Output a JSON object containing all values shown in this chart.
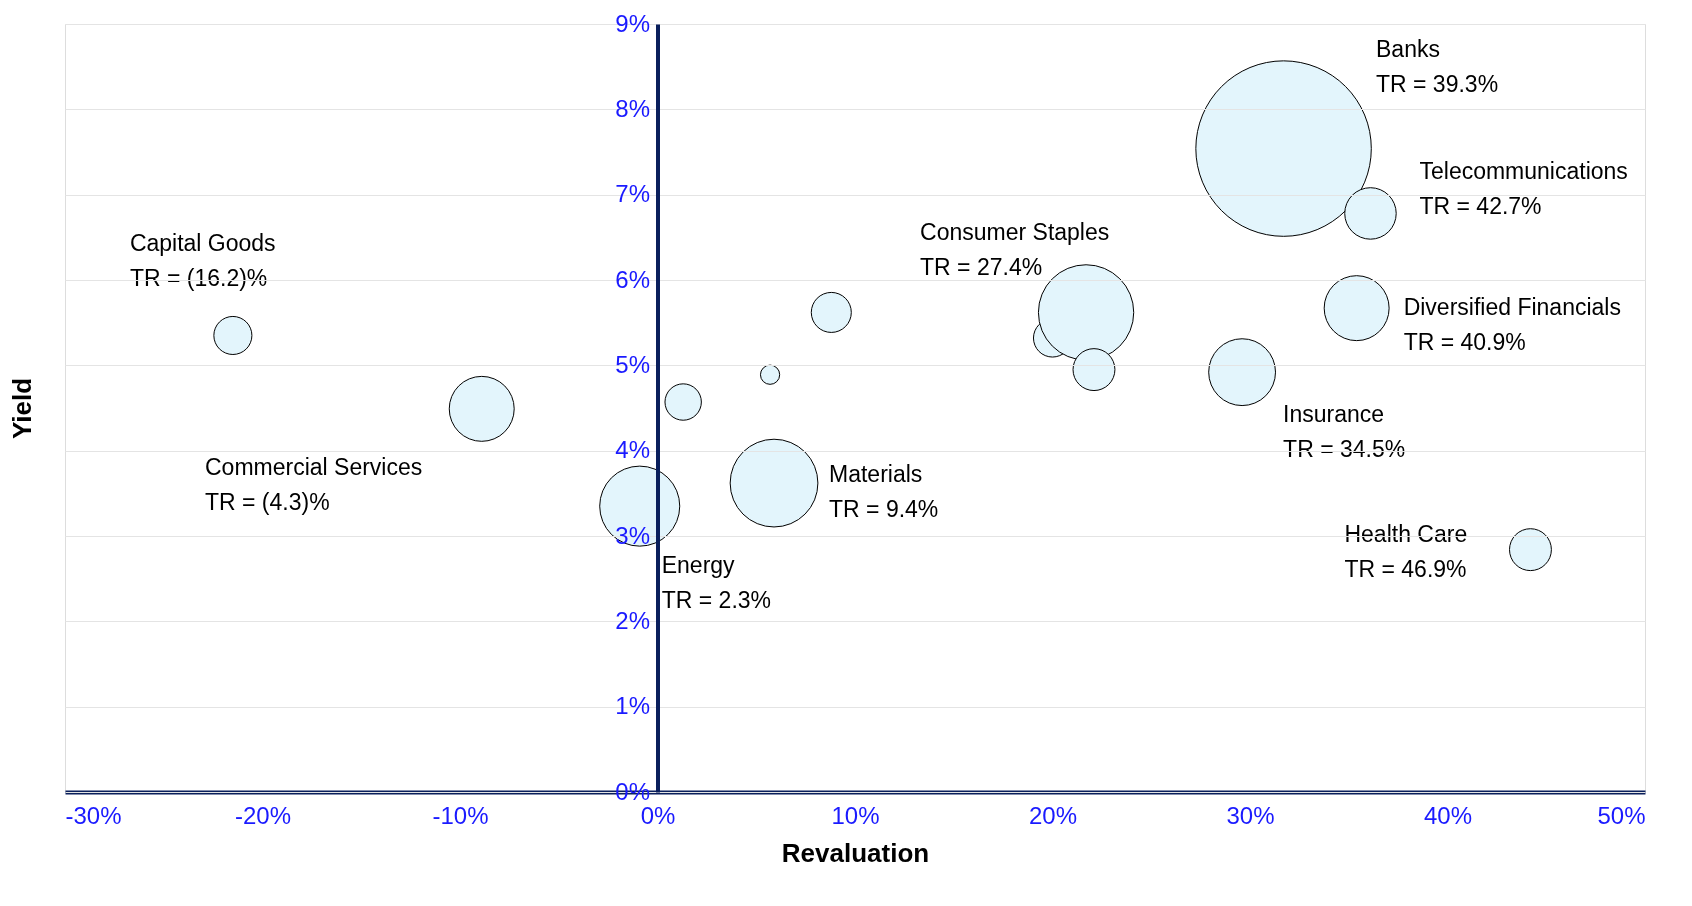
{
  "chart_data": {
    "type": "bubble",
    "xlabel": "Revaluation",
    "ylabel": "Yield",
    "xlim": [
      -30,
      50
    ],
    "ylim": [
      0,
      9
    ],
    "xticks": [
      {
        "value": -30,
        "label": "-30%"
      },
      {
        "value": -20,
        "label": "-20%"
      },
      {
        "value": -10,
        "label": "-10%"
      },
      {
        "value": 0,
        "label": "0%"
      },
      {
        "value": 10,
        "label": "10%"
      },
      {
        "value": 20,
        "label": "20%"
      },
      {
        "value": 30,
        "label": "30%"
      },
      {
        "value": 40,
        "label": "40%"
      },
      {
        "value": 50,
        "label": "50%"
      }
    ],
    "yticks": [
      {
        "value": 0,
        "label": "0%"
      },
      {
        "value": 1,
        "label": "1%"
      },
      {
        "value": 2,
        "label": "2%"
      },
      {
        "value": 3,
        "label": "3%"
      },
      {
        "value": 4,
        "label": "4%"
      },
      {
        "value": 5,
        "label": "5%"
      },
      {
        "value": 6,
        "label": "6%"
      },
      {
        "value": 7,
        "label": "7%"
      },
      {
        "value": 8,
        "label": "8%"
      },
      {
        "value": 9,
        "label": "9%"
      }
    ],
    "grid": "y",
    "series": [
      {
        "color": "#e3f5fc",
        "x": [
          -21.5,
          -8.9,
          -0.9,
          1.3,
          5.7,
          5.9,
          8.8,
          20.0,
          21.7,
          22.1,
          29.6,
          31.7,
          36.1,
          35.4,
          44.2
        ],
        "values": [
          5.35,
          4.49,
          3.35,
          4.57,
          4.89,
          3.62,
          5.62,
          5.32,
          5.62,
          4.95,
          4.92,
          7.54,
          6.78,
          5.67,
          2.84
        ],
        "sizes": [
          0.047,
          0.137,
          0.208,
          0.043,
          0.012,
          0.25,
          0.052,
          0.047,
          0.295,
          0.057,
          0.145,
          1,
          0.086,
          0.137,
          0.057
        ]
      }
    ],
    "annotations": [
      {
        "text": "Capital Goods\nTR = (16.2)%",
        "x": -21.5,
        "y": 5.35
      },
      "Commercial Services\nTR = (4.3)%",
      {
        "text": "Energy\nTR = 2.3%",
        "x": -0.9,
        "y": 3.35
      },
      {
        "text": "Materials\nTR = 9.4%",
        "x": 5.9,
        "y": 3.62
      },
      {
        "text": "Consumer Staples\nTR = 27.4%",
        "x": 21.7,
        "y": 5.62
      },
      "Banks\nTR = 39.3%",
      {
        "text": "Telecommunications\nTR = 42.7%",
        "x": 36.1,
        "y": 6.78
      },
      {
        "text": "Diversified  Financials\nTR = 40.9%",
        "x": 35.4,
        "y": 5.67
      },
      {
        "text": "Insurance\nTR = 34.5%",
        "x": 29.6,
        "y": 4.92
      },
      {
        "text": "Health Care\nTR = 46.9%",
        "x": 44.2,
        "y": 2.84
      }
    ]
  }
}
